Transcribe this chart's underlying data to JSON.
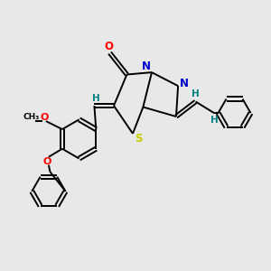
{
  "background_color": "#e8e8e8",
  "bond_color": "#000000",
  "atom_colors": {
    "O": "#ff0000",
    "N": "#0000cd",
    "S": "#cccc00",
    "H": "#008080",
    "C": "#000000"
  },
  "figsize": [
    3.0,
    3.0
  ],
  "dpi": 100
}
